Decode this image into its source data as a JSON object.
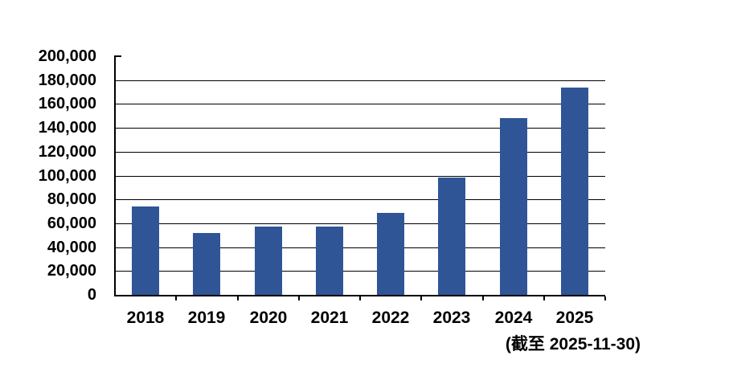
{
  "chart_data": {
    "type": "bar",
    "title": "",
    "xlabel": "",
    "ylabel": "",
    "categories": [
      "2018",
      "2019",
      "2020",
      "2021",
      "2022",
      "2023",
      "2024",
      "2025"
    ],
    "values": [
      74000,
      52000,
      57500,
      57500,
      69000,
      98000,
      148000,
      174000
    ],
    "ylim": [
      0,
      200000
    ],
    "ytick_step": 20000,
    "ytick_labels_top_to_bottom": [
      "200,000",
      "180,000",
      "160,000",
      "140,000",
      "120,000",
      "100,000",
      "80,000",
      "60,000",
      "40,000",
      "20,000",
      "0"
    ],
    "caption": "(截至 2025-11-30)",
    "bar_color": "#2F5597",
    "axis_color": "#000000",
    "gridline_color": "#000000",
    "grid": "horizontal",
    "legend": "none",
    "background_color": "#FFFFFF"
  }
}
